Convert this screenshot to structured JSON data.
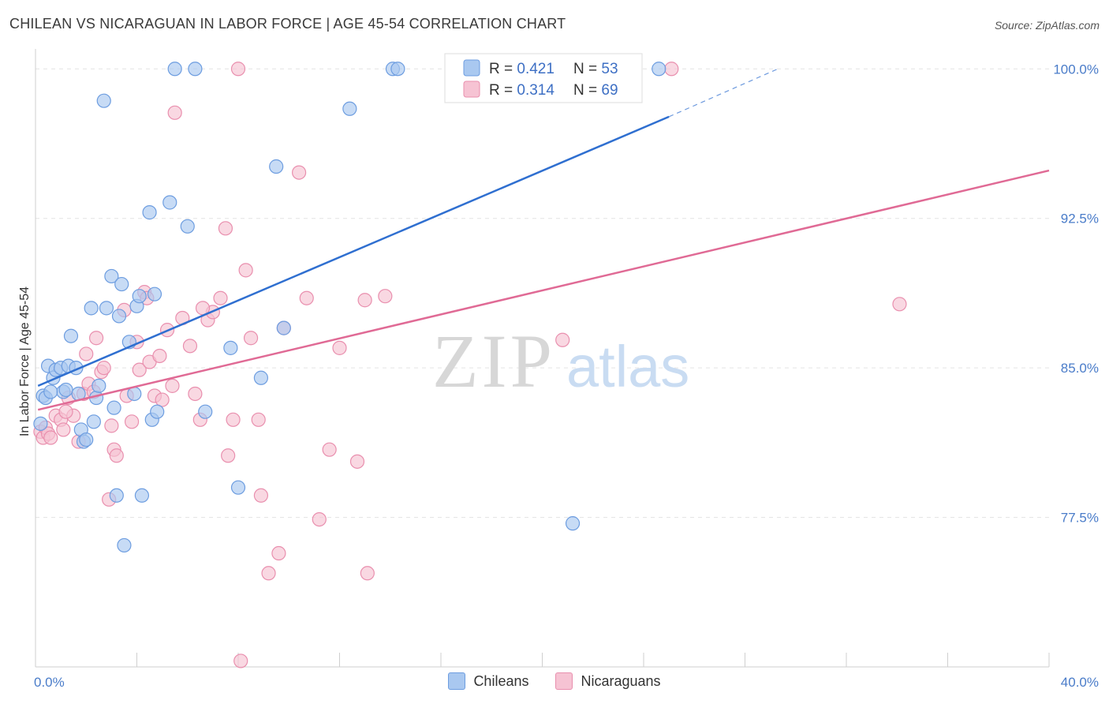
{
  "header": {
    "title": "CHILEAN VS NICARAGUAN IN LABOR FORCE | AGE 45-54 CORRELATION CHART",
    "source": "Source: ZipAtlas.com"
  },
  "watermark": {
    "zip": "ZIP",
    "atlas": "atlas"
  },
  "colors": {
    "blue_fill": "#a9c8f0",
    "blue_stroke": "#6d9de0",
    "blue_line": "#2f6fd0",
    "pink_fill": "#f6c3d3",
    "pink_stroke": "#e98fae",
    "pink_line": "#e06a95",
    "tick_text": "#4a7cc9",
    "grid": "#e3e3e3"
  },
  "legend_box": {
    "rows": [
      {
        "r_label": "R = ",
        "r_value": "0.421",
        "n_label": "N = ",
        "n_value": "53"
      },
      {
        "r_label": "R = ",
        "r_value": "0.314",
        "n_label": "N = ",
        "n_value": "69"
      }
    ]
  },
  "bottom_legend": [
    {
      "label": "Chileans"
    },
    {
      "label": "Nicaraguans"
    }
  ],
  "chart_data": {
    "type": "scatter",
    "ylabel": "In Labor Force | Age 45-54",
    "xlabel": "",
    "xlim": [
      0,
      40
    ],
    "ylim": [
      70.0,
      101.0
    ],
    "x_tick_labels": [
      "0.0%",
      "40.0%"
    ],
    "y_ticks": [
      77.5,
      85.0,
      92.5,
      100.0
    ],
    "y_tick_labels": [
      "77.5%",
      "85.0%",
      "92.5%",
      "100.0%"
    ],
    "grid": true,
    "series": [
      {
        "name": "Chileans",
        "r": 0.421,
        "n": 53,
        "trend": {
          "x0": 0.1,
          "y0": 84.1,
          "x1": 25.0,
          "y1": 97.6,
          "dash_to_x": 29.3,
          "dash_to_y": 100.0
        },
        "points": [
          [
            0.2,
            82.2
          ],
          [
            0.3,
            83.6
          ],
          [
            0.4,
            83.5
          ],
          [
            0.5,
            85.1
          ],
          [
            0.7,
            84.5
          ],
          [
            0.8,
            84.9
          ],
          [
            1.0,
            85.0
          ],
          [
            1.1,
            83.8
          ],
          [
            1.3,
            85.1
          ],
          [
            1.4,
            86.6
          ],
          [
            1.6,
            85.0
          ],
          [
            1.7,
            83.7
          ],
          [
            1.8,
            81.9
          ],
          [
            1.9,
            81.3
          ],
          [
            2.0,
            81.4
          ],
          [
            2.2,
            88.0
          ],
          [
            2.3,
            82.3
          ],
          [
            2.4,
            83.5
          ],
          [
            2.5,
            84.1
          ],
          [
            2.7,
            98.4
          ],
          [
            2.8,
            88.0
          ],
          [
            3.0,
            89.6
          ],
          [
            3.1,
            83.0
          ],
          [
            3.2,
            78.6
          ],
          [
            3.3,
            87.6
          ],
          [
            3.4,
            89.2
          ],
          [
            3.5,
            76.1
          ],
          [
            3.7,
            86.3
          ],
          [
            3.9,
            83.7
          ],
          [
            4.0,
            88.1
          ],
          [
            4.1,
            88.6
          ],
          [
            4.2,
            78.6
          ],
          [
            4.5,
            92.8
          ],
          [
            4.6,
            82.4
          ],
          [
            4.7,
            88.7
          ],
          [
            4.8,
            82.8
          ],
          [
            5.3,
            93.3
          ],
          [
            5.5,
            100.0
          ],
          [
            6.0,
            92.1
          ],
          [
            6.3,
            100.0
          ],
          [
            6.7,
            82.8
          ],
          [
            7.7,
            86.0
          ],
          [
            8.0,
            79.0
          ],
          [
            8.9,
            84.5
          ],
          [
            9.5,
            95.1
          ],
          [
            9.8,
            87.0
          ],
          [
            12.4,
            98.0
          ],
          [
            14.1,
            100.0
          ],
          [
            14.3,
            100.0
          ],
          [
            21.2,
            77.2
          ],
          [
            24.6,
            100.0
          ],
          [
            1.2,
            83.9
          ],
          [
            0.6,
            83.8
          ]
        ]
      },
      {
        "name": "Nicaraguans",
        "r": 0.314,
        "n": 69,
        "trend": {
          "x0": 0.1,
          "y0": 82.9,
          "x1": 40.0,
          "y1": 94.9
        },
        "points": [
          [
            0.2,
            81.8
          ],
          [
            0.3,
            81.5
          ],
          [
            0.4,
            82.0
          ],
          [
            0.5,
            81.7
          ],
          [
            0.8,
            82.6
          ],
          [
            1.0,
            82.4
          ],
          [
            1.1,
            81.9
          ],
          [
            1.3,
            83.5
          ],
          [
            1.5,
            82.6
          ],
          [
            1.7,
            81.3
          ],
          [
            1.9,
            83.7
          ],
          [
            2.1,
            84.2
          ],
          [
            2.3,
            83.8
          ],
          [
            2.4,
            86.5
          ],
          [
            2.6,
            84.8
          ],
          [
            2.7,
            85.0
          ],
          [
            2.9,
            78.4
          ],
          [
            3.1,
            80.9
          ],
          [
            3.2,
            80.6
          ],
          [
            3.5,
            87.9
          ],
          [
            3.6,
            83.6
          ],
          [
            3.8,
            82.3
          ],
          [
            4.0,
            86.3
          ],
          [
            4.1,
            84.9
          ],
          [
            4.3,
            88.8
          ],
          [
            4.5,
            85.3
          ],
          [
            4.7,
            83.6
          ],
          [
            4.9,
            85.6
          ],
          [
            5.0,
            83.4
          ],
          [
            5.4,
            84.1
          ],
          [
            5.5,
            97.8
          ],
          [
            5.8,
            87.5
          ],
          [
            6.1,
            86.1
          ],
          [
            6.3,
            83.7
          ],
          [
            6.5,
            82.4
          ],
          [
            6.8,
            87.4
          ],
          [
            7.0,
            87.8
          ],
          [
            7.3,
            88.5
          ],
          [
            7.5,
            92.0
          ],
          [
            7.6,
            80.6
          ],
          [
            7.8,
            82.4
          ],
          [
            8.0,
            100.0
          ],
          [
            8.3,
            89.9
          ],
          [
            8.5,
            86.5
          ],
          [
            8.8,
            82.4
          ],
          [
            8.9,
            78.6
          ],
          [
            9.2,
            74.7
          ],
          [
            9.6,
            75.7
          ],
          [
            9.8,
            87.0
          ],
          [
            10.4,
            94.8
          ],
          [
            10.7,
            88.5
          ],
          [
            11.2,
            77.4
          ],
          [
            11.6,
            80.9
          ],
          [
            12.0,
            86.0
          ],
          [
            12.7,
            80.3
          ],
          [
            13.0,
            88.4
          ],
          [
            13.1,
            74.7
          ],
          [
            13.8,
            88.6
          ],
          [
            20.8,
            86.4
          ],
          [
            25.1,
            100.0
          ],
          [
            34.1,
            88.2
          ],
          [
            8.1,
            70.3
          ],
          [
            3.0,
            82.1
          ],
          [
            1.2,
            82.8
          ],
          [
            0.6,
            81.5
          ],
          [
            5.2,
            86.9
          ],
          [
            4.4,
            88.5
          ],
          [
            6.6,
            88.0
          ],
          [
            2.0,
            85.7
          ]
        ]
      }
    ]
  }
}
